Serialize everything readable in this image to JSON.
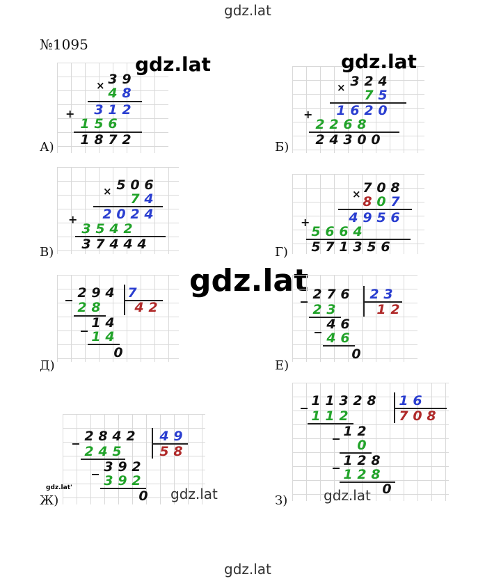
{
  "watermarks": {
    "top": "gdz.lat",
    "bottom": "gdz.lat",
    "left_overlay": "gdz.lat",
    "right_overlay": "gdz.lat",
    "center": "gdz.lat",
    "zh_small": "gdz.lat",
    "zh_tiny": "gdz.lat'",
    "z_small": "gdz.lat"
  },
  "exercise_number": "№1095",
  "labels": {
    "a": "А)",
    "b": "Б)",
    "v": "В)",
    "g": "Г)",
    "d": "Д)",
    "e": "Е)",
    "zh": "Ж)",
    "z": "З)"
  },
  "colors": {
    "black": "#111111",
    "green": "#22a32a",
    "blue": "#2a3ed0",
    "red": "#b02a2a"
  }
}
